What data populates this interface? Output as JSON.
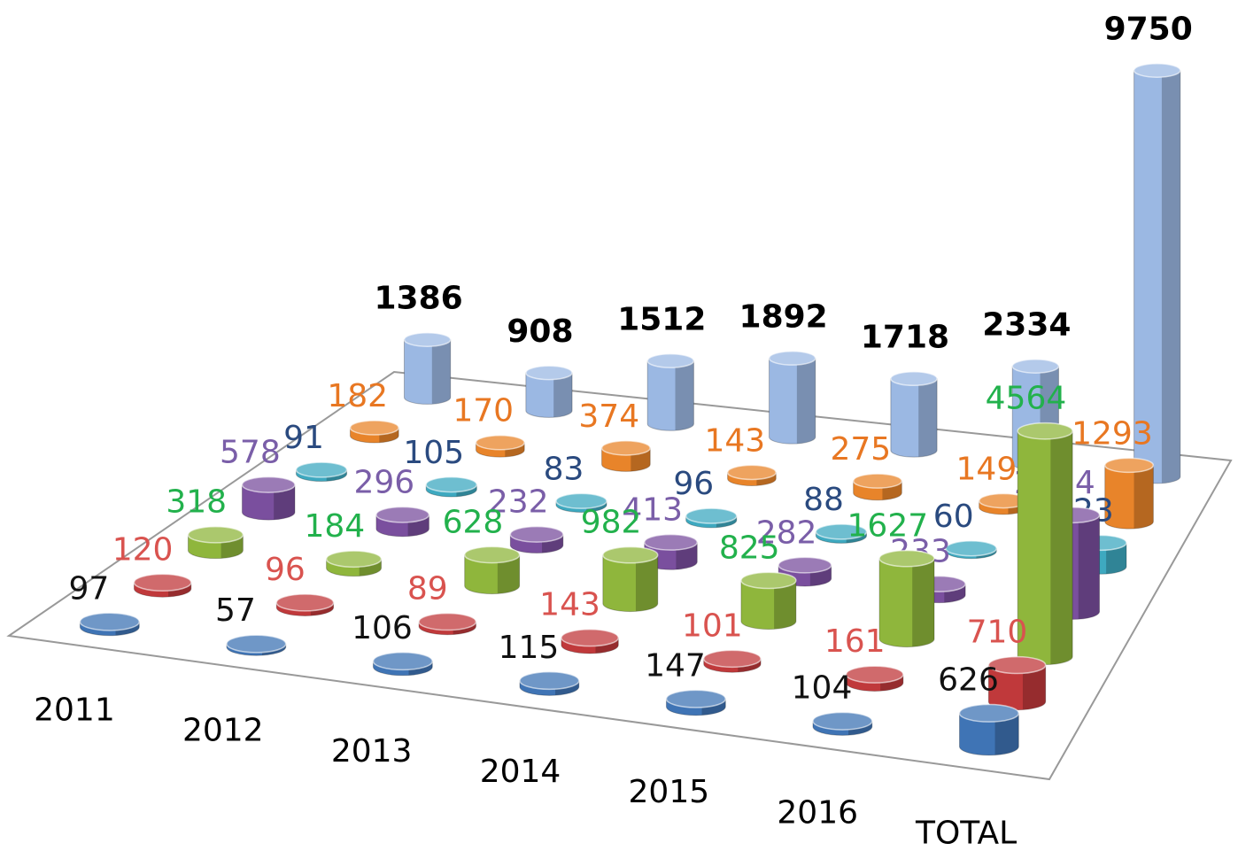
{
  "chart_data": {
    "type": "cylinder3d",
    "categories": [
      "2011",
      "2012",
      "2013",
      "2014",
      "2015",
      "2016",
      "TOTAL"
    ],
    "series": [
      {
        "color": "#3f74b5",
        "label_color": "#111111",
        "values": [
          97,
          57,
          106,
          115,
          147,
          104,
          626
        ]
      },
      {
        "color": "#c0393b",
        "label_color": "#d9534f",
        "values": [
          120,
          96,
          89,
          143,
          101,
          161,
          710
        ]
      },
      {
        "color": "#8fb63c",
        "label_color": "#22b14c",
        "values": [
          318,
          184,
          628,
          982,
          825,
          1627,
          4564
        ]
      },
      {
        "color": "#7a4f9e",
        "label_color": "#7a5ea8",
        "values": [
          578,
          296,
          232,
          413,
          282,
          233,
          2034
        ]
      },
      {
        "color": "#3ea9c0",
        "label_color": "#2a4a7f",
        "values": [
          91,
          105,
          83,
          96,
          88,
          60,
          523
        ]
      },
      {
        "color": "#e8842a",
        "label_color": "#e87722",
        "values": [
          182,
          170,
          374,
          143,
          275,
          149,
          1293
        ]
      },
      {
        "color": "#9bb8e3",
        "label_color": "#000000",
        "values": [
          1386,
          908,
          1512,
          1892,
          1718,
          2334,
          9750
        ]
      }
    ]
  }
}
